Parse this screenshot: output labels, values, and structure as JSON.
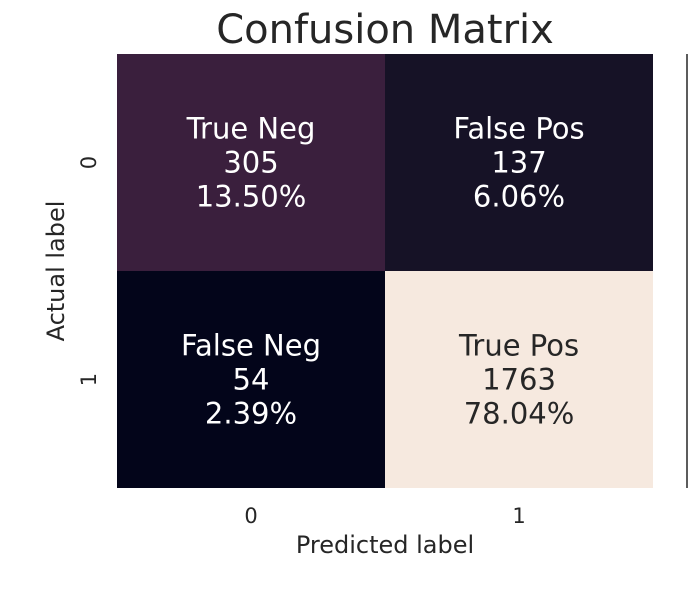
{
  "chart_data": {
    "type": "heatmap",
    "title": "Confusion Matrix",
    "xlabel": "Predicted label",
    "ylabel": "Actual label",
    "x_categories": [
      "0",
      "1"
    ],
    "y_categories": [
      "0",
      "1"
    ],
    "cells": [
      {
        "row": 0,
        "col": 0,
        "name": "True Neg",
        "count": "305",
        "percent": "13.50%",
        "value": 305,
        "color": "#3a1f3d",
        "text_color": "#ffffff"
      },
      {
        "row": 0,
        "col": 1,
        "name": "False Pos",
        "count": "137",
        "percent": "6.06%",
        "value": 137,
        "color": "#161226",
        "text_color": "#ffffff"
      },
      {
        "row": 1,
        "col": 0,
        "name": "False Neg",
        "count": "54",
        "percent": "2.39%",
        "value": 54,
        "color": "#03051a",
        "text_color": "#ffffff"
      },
      {
        "row": 1,
        "col": 1,
        "name": "True Pos",
        "count": "1763",
        "percent": "78.04%",
        "value": 1763,
        "color": "#f6e9df",
        "text_color": "#262626"
      }
    ],
    "colorbar": "none",
    "grid": false
  }
}
